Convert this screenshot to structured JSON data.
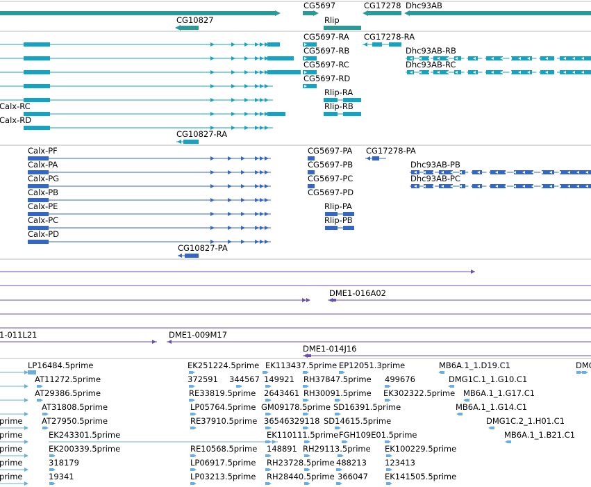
{
  "colors": {
    "gene": "#2a9a98",
    "transcript": "#13a3c4",
    "protein": "#3366cc",
    "clone": "#6a4fb0",
    "est": "#6aaee0",
    "divider": "#bbbbbb"
  },
  "tracks": {
    "genes": {
      "labels": [
        "CG5697",
        "CG17278",
        "Dhc93AB",
        "CG10827",
        "Rlip"
      ]
    },
    "transcripts": {
      "labels": [
        "CG5697-RA",
        "CG17278-RA",
        "CG5697-RB",
        "Dhc93AB-RB",
        "CG5697-RC",
        "Dhc93AB-RC",
        "CG5697-RD",
        "Rlip-RA",
        "Calx-RC",
        "Rlip-RB",
        "Calx-RD",
        "CG10827-RA"
      ]
    },
    "proteins": {
      "labels": [
        "Calx-PF",
        "CG5697-PA",
        "CG17278-PA",
        "Calx-PA",
        "CG5697-PB",
        "Dhc93AB-PB",
        "Calx-PG",
        "CG5697-PC",
        "Dhc93AB-PC",
        "Calx-PB",
        "CG5697-PD",
        "Calx-PE",
        "Rlip-PA",
        "Calx-PC",
        "Rlip-PB",
        "Calx-PD",
        "CG10827-PA"
      ]
    },
    "clones": {
      "labels": [
        "DME1-016A02",
        "1-011L21",
        "DME1-009M17",
        "DME1-014J16"
      ]
    },
    "ests": {
      "labels": [
        "LP16484.5prime",
        "EK251224.5prime",
        "EK113437.5prime",
        "EP12051.3prime",
        "MB6A.1_1.D19.C1",
        "DMC",
        "AT11272.5prime",
        "372591",
        "344567",
        "149921",
        "RH37847.5prime",
        "499676",
        "DMG1C.1_1.G10.C1",
        "AT29386.5prime",
        "RE33819.5prime",
        "2643461",
        "RH30091.5prime",
        "EK302322.5prime",
        "MB6A.1_1.G17.C1",
        "AT31808.5prime",
        "LP05764.5prime",
        "GM09178.5prime",
        "SD16391.5prime",
        "MB6A.1_1.G14.C1",
        "prime",
        "AT27950.5prime",
        "RE37910.5prime",
        "36546329118",
        "SD14615.5prime",
        "DMG1C.2_1.H01.C1",
        "prime",
        "EK243301.5prime",
        "RE10568.5prime",
        "EK110111.5prime",
        "FGH109E01.5prime",
        "MB6A.1_1.B21.C1",
        "prime",
        "EK200339.5prime",
        "148891",
        "RH29113.5prime",
        "EK100229.5prime",
        "prime",
        "318179",
        "LP06917.5prime",
        "RH23728.5prime",
        "488213",
        "123413",
        "prime",
        "19341",
        "LP03213.5prime",
        "RH28440.5prime",
        "366047",
        "EK141505.5prime"
      ]
    }
  }
}
